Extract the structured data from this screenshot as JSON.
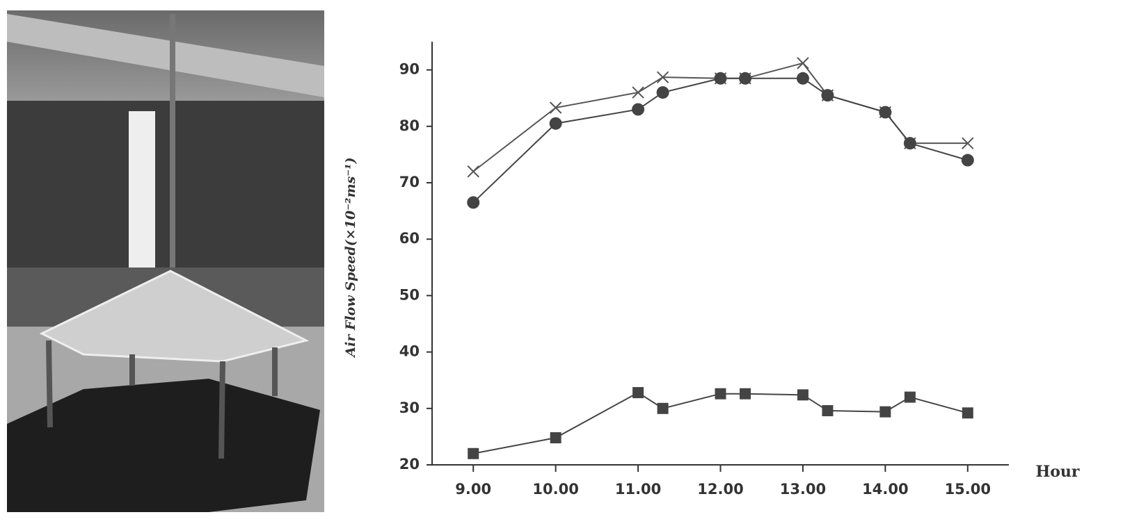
{
  "chart_data": {
    "type": "line",
    "ylabel": "Air Flow Speed(×10⁻²ms⁻¹)",
    "xlabel": "Hour",
    "x": [
      9,
      10,
      11,
      11.3,
      12,
      12.3,
      13,
      13.3,
      14,
      14.3,
      15
    ],
    "series": [
      {
        "color": "#555555",
        "marker": "x",
        "values": [
          72,
          83.3,
          86,
          88.7,
          88.5,
          88.5,
          91.2,
          85.5,
          82.5,
          77,
          77
        ]
      },
      {
        "color": "#444444",
        "marker": "o",
        "values": [
          66.5,
          80.5,
          83,
          86,
          88.5,
          88.5,
          88.5,
          85.5,
          82.5,
          77,
          74
        ]
      },
      {
        "color": "#444444",
        "marker": "s",
        "values": [
          22,
          24.8,
          32.8,
          30,
          32.6,
          32.6,
          32.4,
          29.6,
          29.4,
          32,
          29.2
        ]
      }
    ],
    "xlim": [
      8.5,
      15.5
    ],
    "xticks": [
      {
        "value": 9,
        "label": "9.00"
      },
      {
        "value": 10,
        "label": "10.00"
      },
      {
        "value": 11,
        "label": "11.00"
      },
      {
        "value": 12,
        "label": "12.00"
      },
      {
        "value": 13,
        "label": "13.00"
      },
      {
        "value": 14,
        "label": "14.00"
      },
      {
        "value": 15,
        "label": "15.00"
      }
    ],
    "ylim": [
      20,
      95
    ],
    "yticks": [
      20,
      30,
      40,
      50,
      60,
      70,
      80,
      90
    ]
  }
}
